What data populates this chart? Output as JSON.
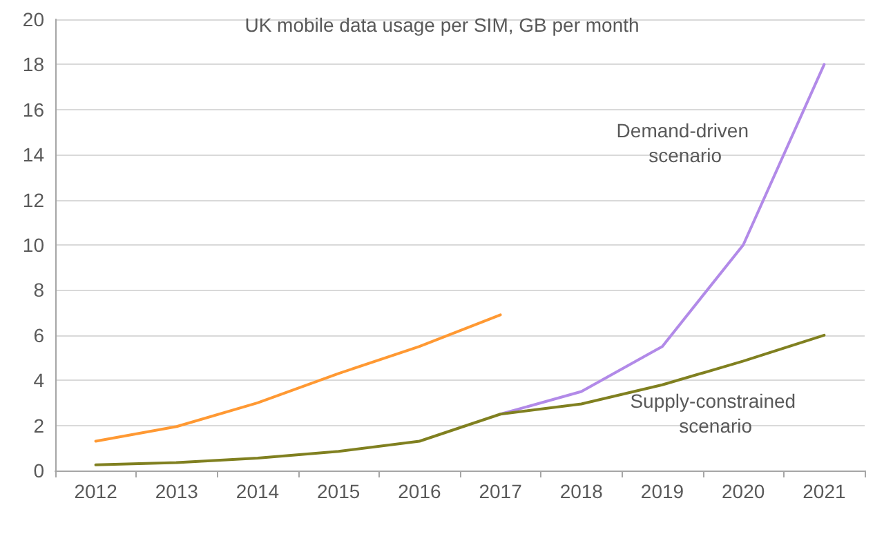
{
  "chart_data": {
    "type": "line",
    "title": "UK mobile data usage per SIM, GB per month",
    "categories": [
      "2012",
      "2013",
      "2014",
      "2015",
      "2016",
      "2017",
      "2018",
      "2019",
      "2020",
      "2021"
    ],
    "series": [
      {
        "color": "#ff9933",
        "values": [
          1.3,
          1.95,
          3.0,
          4.3,
          5.5,
          6.9,
          null,
          null,
          null,
          null
        ]
      },
      {
        "name": "Demand-driven scenario",
        "color": "#b28ae8",
        "values": [
          null,
          null,
          null,
          null,
          null,
          2.5,
          3.5,
          5.5,
          10,
          18
        ]
      },
      {
        "name": "Supply-constrained scenario",
        "color": "#808020",
        "values": [
          0.25,
          0.35,
          0.55,
          0.85,
          1.3,
          2.5,
          2.95,
          3.8,
          4.85,
          6.0
        ]
      }
    ],
    "ylim": [
      0,
      20
    ],
    "yticks": [
      0,
      2,
      4,
      6,
      8,
      10,
      12,
      14,
      16,
      18,
      20
    ],
    "grid": "y",
    "legend": false,
    "marker": "none",
    "line_style": "solid"
  }
}
